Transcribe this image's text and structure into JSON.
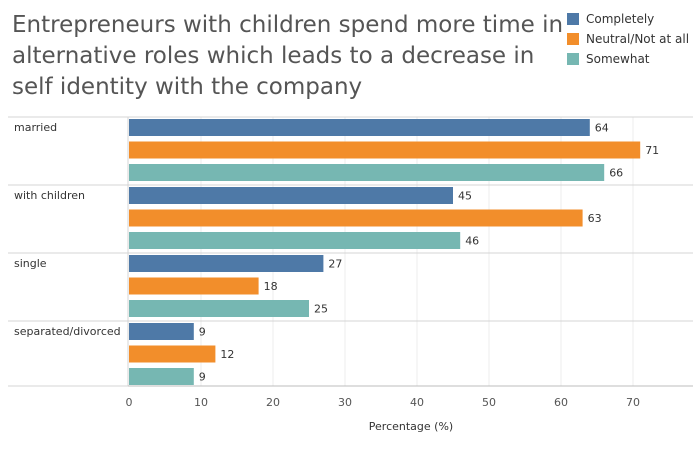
{
  "chart_data": {
    "type": "bar",
    "orientation": "horizontal",
    "title": "Entrepreneurs with children spend more time in alternative roles which leads to a decrease in self identity with the company",
    "xlabel": "Percentage (%)",
    "ylabel": "",
    "xlim": [
      0,
      77
    ],
    "xticks": [
      0,
      10,
      20,
      30,
      40,
      50,
      60,
      70
    ],
    "grid": true,
    "legend_position": "top-right",
    "categories": [
      "married",
      "with children",
      "single",
      "separated/divorced"
    ],
    "series": [
      {
        "name": "Completely",
        "color": "#4e79a7",
        "values": [
          64,
          45,
          27,
          9
        ]
      },
      {
        "name": "Neutral/Not at all",
        "color": "#f28e2b",
        "values": [
          71,
          63,
          18,
          12
        ]
      },
      {
        "name": "Somewhat",
        "color": "#76b7b2",
        "values": [
          66,
          46,
          25,
          9
        ]
      }
    ]
  }
}
